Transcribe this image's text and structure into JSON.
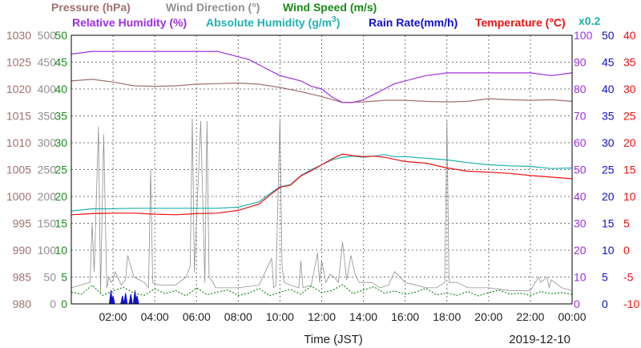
{
  "headers": {
    "row1": [
      {
        "text": "Pressure (hPa)",
        "color": "#a07070"
      },
      {
        "text": "Wind Direction (°)",
        "color": "#909090"
      },
      {
        "text": "Wind Speed (m/s)",
        "color": "#1a8a1a"
      }
    ],
    "row2": [
      {
        "text": "Relative Humidity (%)",
        "color": "#9b30e0"
      },
      {
        "text": "Absolute Humidity (g/m",
        "sup": "3",
        "tail": ")",
        "color": "#20b0b0"
      },
      {
        "text": "Rain Rate(mm/h)",
        "color": "#1010d0"
      },
      {
        "text": "Temperature (°C)",
        "color": "#ee1010"
      }
    ],
    "scale_note": {
      "text": "x0.2",
      "color": "#20b0b0"
    }
  },
  "footer": {
    "xlabel": "Time (JST)",
    "date": "2019-12-10"
  },
  "colors": {
    "pressure": "#a07070",
    "wind_dir": "#909090",
    "wind_speed": "#1a8a1a",
    "rh": "#9b30e0",
    "abs_hum": "#20b0b0",
    "rain": "#1010d0",
    "temp": "#ee1010",
    "grid": "#777777"
  },
  "chart_data": {
    "type": "line",
    "x_unit": "hours (JST)",
    "xlim": [
      0,
      24
    ],
    "x_ticks": [
      {
        "v": 2,
        "label": "02:00"
      },
      {
        "v": 4,
        "label": "04:00"
      },
      {
        "v": 6,
        "label": "06:00"
      },
      {
        "v": 8,
        "label": "08:00"
      },
      {
        "v": 10,
        "label": "10:00"
      },
      {
        "v": 12,
        "label": "12:00"
      },
      {
        "v": 14,
        "label": "14:00"
      },
      {
        "v": 16,
        "label": "16:00"
      },
      {
        "v": 18,
        "label": "18:00"
      },
      {
        "v": 20,
        "label": "20:00"
      },
      {
        "v": 22,
        "label": "22:00"
      },
      {
        "v": 24,
        "label": "00:00"
      }
    ],
    "axes": [
      {
        "key": "pressure",
        "side": "left",
        "label": "Pressure (hPa)",
        "ylim": [
          980,
          1030
        ],
        "ticks": [
          "980",
          "985",
          "990",
          "995",
          "1000",
          "1005",
          "1010",
          "1015",
          "1020",
          "1025",
          "1030"
        ]
      },
      {
        "key": "wind_dir",
        "side": "left",
        "label": "Wind Direction (°)",
        "ylim": [
          0,
          500
        ],
        "ticks": [
          "0",
          "50",
          "100",
          "150",
          "200",
          "250",
          "300",
          "350",
          "400",
          "450",
          "500"
        ]
      },
      {
        "key": "wind_speed",
        "side": "left",
        "label": "Wind Speed (m/s)",
        "ylim": [
          0,
          50
        ],
        "ticks": [
          "0",
          "5",
          "10",
          "15",
          "20",
          "25",
          "30",
          "35",
          "40",
          "45",
          "50"
        ]
      },
      {
        "key": "rh",
        "side": "right",
        "label": "Relative Humidity (%)",
        "ylim": [
          0,
          100
        ],
        "ticks": [
          "0",
          "10",
          "20",
          "30",
          "40",
          "50",
          "60",
          "70",
          "80",
          "90",
          "100"
        ]
      },
      {
        "key": "rain",
        "side": "right",
        "label": "Rain Rate(mm/h)",
        "ylim": [
          0,
          50
        ],
        "ticks": [
          "0",
          "5",
          "10",
          "15",
          "20",
          "25",
          "30",
          "35",
          "40",
          "45",
          "50"
        ]
      },
      {
        "key": "temp",
        "side": "right",
        "label": "Temperature (°C)",
        "ylim": [
          -10,
          40
        ],
        "ticks": [
          "-10",
          "-5",
          "0",
          "5",
          "10",
          "15",
          "20",
          "25",
          "30",
          "35",
          "40"
        ]
      }
    ],
    "series": [
      {
        "name": "Pressure (hPa)",
        "key": "pressure",
        "axis": "pressure",
        "style": "line",
        "x": [
          0,
          1,
          2,
          3,
          4,
          5,
          6,
          7,
          8,
          9,
          10,
          11,
          12,
          13,
          14,
          15,
          16,
          17,
          18,
          19,
          20,
          21,
          22,
          23,
          24
        ],
        "y": [
          1021.5,
          1021.8,
          1021.3,
          1020.6,
          1020.5,
          1020.6,
          1020.9,
          1021.0,
          1021.1,
          1020.9,
          1020.3,
          1019.5,
          1018.6,
          1017.5,
          1017.6,
          1017.9,
          1017.9,
          1017.7,
          1017.6,
          1017.7,
          1018.2,
          1018.0,
          1017.9,
          1018.0,
          1017.7
        ]
      },
      {
        "name": "Relative Humidity (%)",
        "key": "rh",
        "axis": "rh",
        "style": "line",
        "x": [
          0,
          1,
          2,
          3,
          4,
          5,
          6,
          7,
          7.5,
          8,
          8.5,
          9,
          9.5,
          10,
          10.5,
          11,
          11.5,
          12,
          12.5,
          13,
          13.5,
          14,
          14.5,
          15,
          15.5,
          16,
          17,
          18,
          19,
          20,
          21,
          22,
          23,
          24
        ],
        "y": [
          93,
          94,
          94,
          94,
          94,
          94,
          94,
          94,
          93,
          92,
          91,
          89,
          87,
          85,
          84,
          83,
          81,
          80,
          77,
          75,
          75,
          76,
          78,
          80,
          82,
          83,
          85,
          86,
          86,
          86,
          86,
          86,
          85,
          86
        ]
      },
      {
        "name": "Absolute Humidity (g/m³)",
        "key": "abs_hum",
        "axis": "temp",
        "style": "line",
        "x": [
          0,
          1,
          2,
          3,
          4,
          5,
          6,
          7,
          8,
          9,
          9.5,
          10,
          10.5,
          11,
          11.5,
          12,
          12.5,
          13,
          13.5,
          14,
          14.5,
          15,
          15.5,
          16,
          17,
          18,
          19,
          20,
          21,
          22,
          23,
          24
        ],
        "y": [
          7.3,
          7.7,
          7.7,
          7.8,
          7.8,
          7.8,
          7.8,
          7.8,
          8.0,
          9.0,
          10.5,
          11.8,
          12.2,
          13.9,
          15.0,
          15.9,
          16.8,
          17.3,
          17.5,
          17.3,
          17.5,
          17.8,
          17.4,
          17.4,
          17.1,
          16.8,
          16.3,
          15.9,
          15.7,
          15.6,
          15.2,
          15.3
        ]
      },
      {
        "name": "Temperature (°C)",
        "key": "temp",
        "axis": "temp",
        "style": "line",
        "x": [
          0,
          1,
          2,
          3,
          4,
          5,
          6,
          7,
          8,
          9,
          9.5,
          10,
          10.5,
          11,
          11.5,
          12,
          12.5,
          13,
          13.5,
          14,
          14.5,
          15,
          15.5,
          16,
          17,
          18,
          19,
          20,
          21,
          22,
          23,
          24
        ],
        "y": [
          6.6,
          6.8,
          6.9,
          6.9,
          6.7,
          6.6,
          6.8,
          6.9,
          7.4,
          8.6,
          10.2,
          11.7,
          12.1,
          13.8,
          14.8,
          15.9,
          17.0,
          17.9,
          17.6,
          17.4,
          17.5,
          17.3,
          16.9,
          16.5,
          16.2,
          15.3,
          14.7,
          14.5,
          14.3,
          13.9,
          13.6,
          13.3
        ]
      },
      {
        "name": "Wind Direction (°)",
        "key": "wind_dir",
        "axis": "wind_dir",
        "style": "line",
        "x": [
          0,
          0.9,
          1.0,
          1.1,
          1.3,
          1.4,
          1.55,
          1.7,
          1.8,
          1.9,
          2.0,
          2.1,
          2.4,
          2.6,
          2.7,
          3.0,
          3.5,
          3.7,
          3.8,
          3.9,
          4.2,
          5.0,
          5.5,
          5.7,
          5.8,
          5.9,
          6.2,
          6.4,
          6.5,
          6.6,
          6.7,
          6.8,
          6.9,
          7.5,
          8.0,
          9.0,
          9.6,
          9.7,
          9.8,
          10.0,
          10.1,
          10.2,
          10.5,
          10.9,
          11.0,
          11.1,
          11.5,
          11.8,
          11.9,
          12.0,
          12.2,
          12.4,
          12.6,
          12.8,
          13.0,
          13.2,
          13.4,
          13.6,
          13.8,
          14.0,
          14.4,
          14.8,
          15.2,
          15.5,
          16,
          17,
          17.5,
          17.9,
          18.0,
          18.1,
          18.5,
          19,
          20,
          21,
          22,
          22.4,
          22.5,
          22.8,
          22.9,
          23.0,
          23.5,
          24
        ],
        "y": [
          30,
          40,
          150,
          60,
          330,
          20,
          315,
          30,
          50,
          40,
          45,
          60,
          35,
          45,
          90,
          50,
          40,
          30,
          250,
          40,
          35,
          35,
          50,
          70,
          345,
          60,
          340,
          40,
          340,
          50,
          45,
          40,
          30,
          30,
          30,
          35,
          85,
          30,
          35,
          345,
          70,
          40,
          35,
          30,
          80,
          30,
          35,
          95,
          40,
          80,
          40,
          55,
          50,
          40,
          115,
          45,
          90,
          55,
          40,
          40,
          40,
          30,
          35,
          60,
          40,
          30,
          30,
          40,
          340,
          40,
          40,
          30,
          30,
          25,
          25,
          50,
          40,
          50,
          30,
          45,
          30,
          25
        ]
      },
      {
        "name": "Wind Speed (m/s)",
        "key": "wind_speed",
        "axis": "wind_speed",
        "style": "dotted",
        "x": [
          0,
          0.5,
          1.0,
          1.5,
          2.0,
          2.5,
          3.0,
          3.5,
          4.0,
          4.5,
          5.0,
          5.5,
          6.0,
          6.5,
          7.0,
          7.5,
          8.0,
          8.5,
          9.0,
          9.5,
          10.0,
          10.5,
          11.0,
          11.5,
          12.0,
          12.5,
          13.0,
          13.5,
          14.0,
          14.5,
          15.0,
          15.5,
          16.0,
          16.5,
          17.0,
          17.5,
          18.0,
          18.5,
          19.0,
          19.5,
          20.0,
          20.5,
          21.0,
          21.5,
          22.0,
          22.5,
          23.0,
          23.5,
          24.0
        ],
        "y": [
          2.2,
          1.8,
          3.5,
          1.6,
          2.4,
          3.1,
          2.0,
          1.6,
          2.8,
          1.9,
          2.5,
          1.5,
          3.0,
          1.7,
          2.2,
          2.6,
          1.6,
          2.0,
          2.9,
          1.5,
          2.2,
          2.7,
          1.8,
          3.3,
          2.1,
          2.5,
          3.6,
          1.9,
          2.6,
          3.2,
          2.0,
          2.4,
          1.8,
          2.2,
          2.9,
          1.7,
          2.0,
          1.6,
          2.3,
          1.5,
          2.1,
          2.6,
          1.8,
          2.0,
          1.6,
          2.3,
          1.9,
          2.1,
          1.8
        ]
      },
      {
        "name": "Rain Rate(mm/h)",
        "key": "rain",
        "axis": "rain",
        "style": "spikes",
        "x": [
          1.9,
          2.0,
          2.45,
          2.6,
          2.85,
          3.05,
          3.15
        ],
        "y": [
          2.5,
          1.5,
          1.5,
          2.0,
          1.8,
          2.5,
          1.5
        ]
      }
    ]
  }
}
